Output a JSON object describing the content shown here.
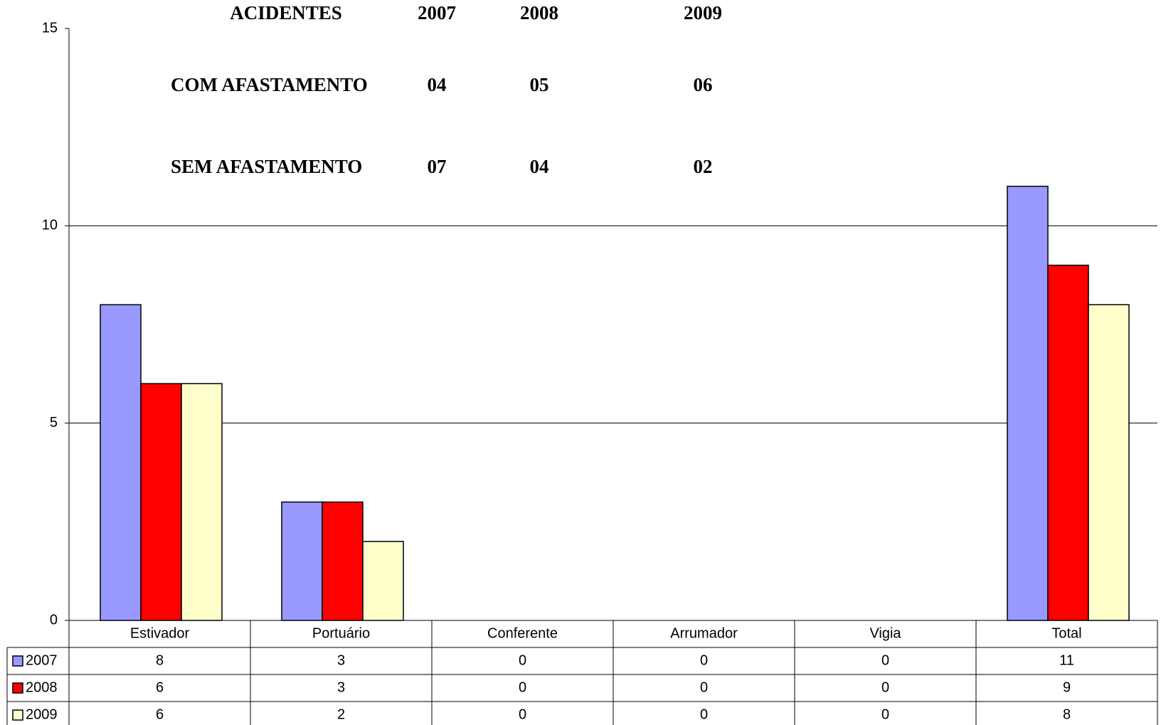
{
  "chart_data": {
    "type": "bar",
    "categories": [
      "Estivador",
      "Portuário",
      "Conferente",
      "Arrumador",
      "Vigia",
      "Total"
    ],
    "series": [
      {
        "name": "2007",
        "color": "#9999ff",
        "values": [
          8,
          3,
          0,
          0,
          0,
          11
        ]
      },
      {
        "name": "2008",
        "color": "#ff0000",
        "values": [
          6,
          3,
          0,
          0,
          0,
          9
        ]
      },
      {
        "name": "2009",
        "color": "#ffffcc",
        "values": [
          6,
          2,
          0,
          0,
          0,
          8
        ]
      }
    ],
    "ylim": [
      0,
      15
    ],
    "yticks": [
      0,
      5,
      10,
      15
    ],
    "grid": true,
    "data_table": true,
    "annotation_table": {
      "header": [
        "ACIDENTES",
        "2007",
        "2008",
        "2009"
      ],
      "rows": [
        [
          "COM AFASTAMENTO",
          "04",
          "05",
          "06"
        ],
        [
          "SEM AFASTAMENTO",
          "07",
          "04",
          "02"
        ]
      ]
    }
  }
}
